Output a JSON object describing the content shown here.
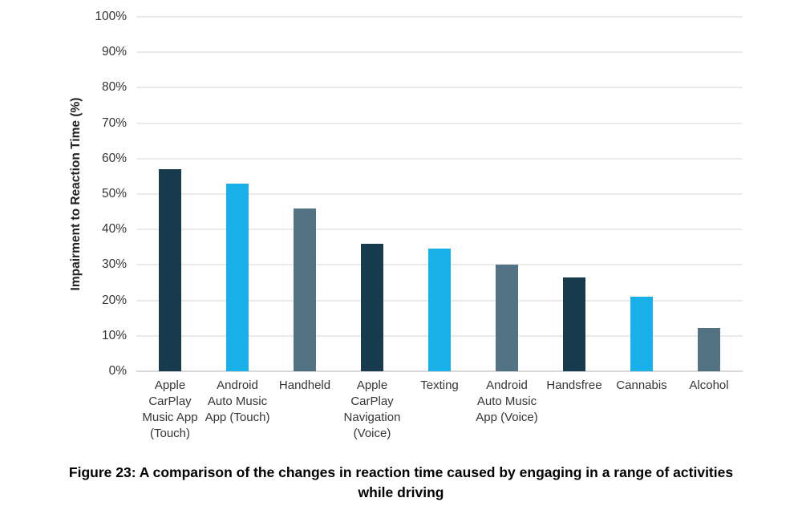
{
  "chart_data": {
    "type": "bar",
    "title": "",
    "xlabel": "",
    "ylabel": "Impairment to Reaction Time (%)",
    "ylim": [
      0,
      100
    ],
    "ytick_step": 10,
    "ytick_labels": [
      "100%",
      "90%",
      "80%",
      "70%",
      "60%",
      "50%",
      "40%",
      "30%",
      "20%",
      "10%",
      "0%"
    ],
    "grid": true,
    "legend": false,
    "categories": [
      "Apple CarPlay Music App (Touch)",
      "Android Auto Music App (Touch)",
      "Handheld",
      "Apple CarPlay Navigation (Voice)",
      "Texting",
      "Android Auto Music App (Voice)",
      "Handsfree",
      "Cannabis",
      "Alcohol"
    ],
    "values": [
      57,
      53,
      46,
      36,
      34.7,
      30,
      26.5,
      21,
      12.3
    ],
    "bar_color_cycle": [
      "#173a4d",
      "#19b0ea",
      "#537284"
    ]
  },
  "caption": "Figure 23: A comparison of the changes in reaction time caused by engaging in a range of activities while driving",
  "colors": {
    "gridline": "#e9e9e9",
    "baseline": "#d8d8d8",
    "axis_text": "#353535",
    "axis_title_text": "#222222",
    "background": "#ffffff"
  }
}
